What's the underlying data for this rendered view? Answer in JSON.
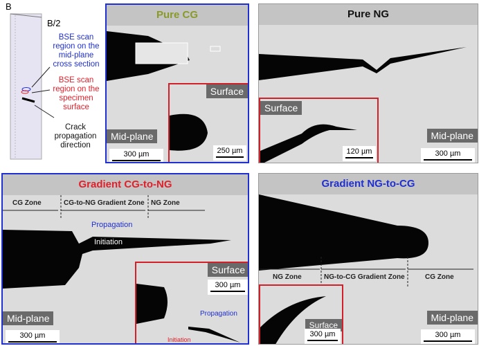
{
  "schematic": {
    "dim_b": "B",
    "dim_b2": "B/2",
    "label_midplane": "BSE scan region on the mid-plane cross section",
    "label_surface": "BSE scan region on the specimen surface",
    "label_crack": "Crack propagation direction",
    "colors": {
      "midplane": "#1f2fd0",
      "surface": "#e0202a"
    }
  },
  "panels": [
    {
      "title": "Pure CG",
      "title_color": "#8a9a2a",
      "main_label": "Mid-plane",
      "main_scale": "300 µm",
      "inset_label": "Surface",
      "inset_scale": "250 µm"
    },
    {
      "title": "Pure NG",
      "title_color": "#111111",
      "main_label": "Mid-plane",
      "main_scale": "300 µm",
      "inset_label": "Surface",
      "inset_scale": "120 µm"
    },
    {
      "title": "Gradient CG-to-NG",
      "title_color": "#e0202a",
      "main_label": "Mid-plane",
      "main_scale": "300 µm",
      "inset_label": "Surface",
      "inset_scale": "300 µm",
      "zones": [
        "CG Zone",
        "CG-to-NG Gradient Zone",
        "NG Zone"
      ],
      "annot_propagation": "Propagation",
      "annot_initiation": "Initiation",
      "inset_propagation": "Propagation",
      "inset_initiation": "Initiation"
    },
    {
      "title": "Gradient NG-to-CG",
      "title_color": "#1f2fd0",
      "main_label": "Mid-plane",
      "main_scale": "300 µm",
      "inset_label": "Surface",
      "inset_scale": "300 µm",
      "zones": [
        "NG Zone",
        "NG-to-CG Gradient Zone",
        "CG Zone"
      ]
    }
  ]
}
